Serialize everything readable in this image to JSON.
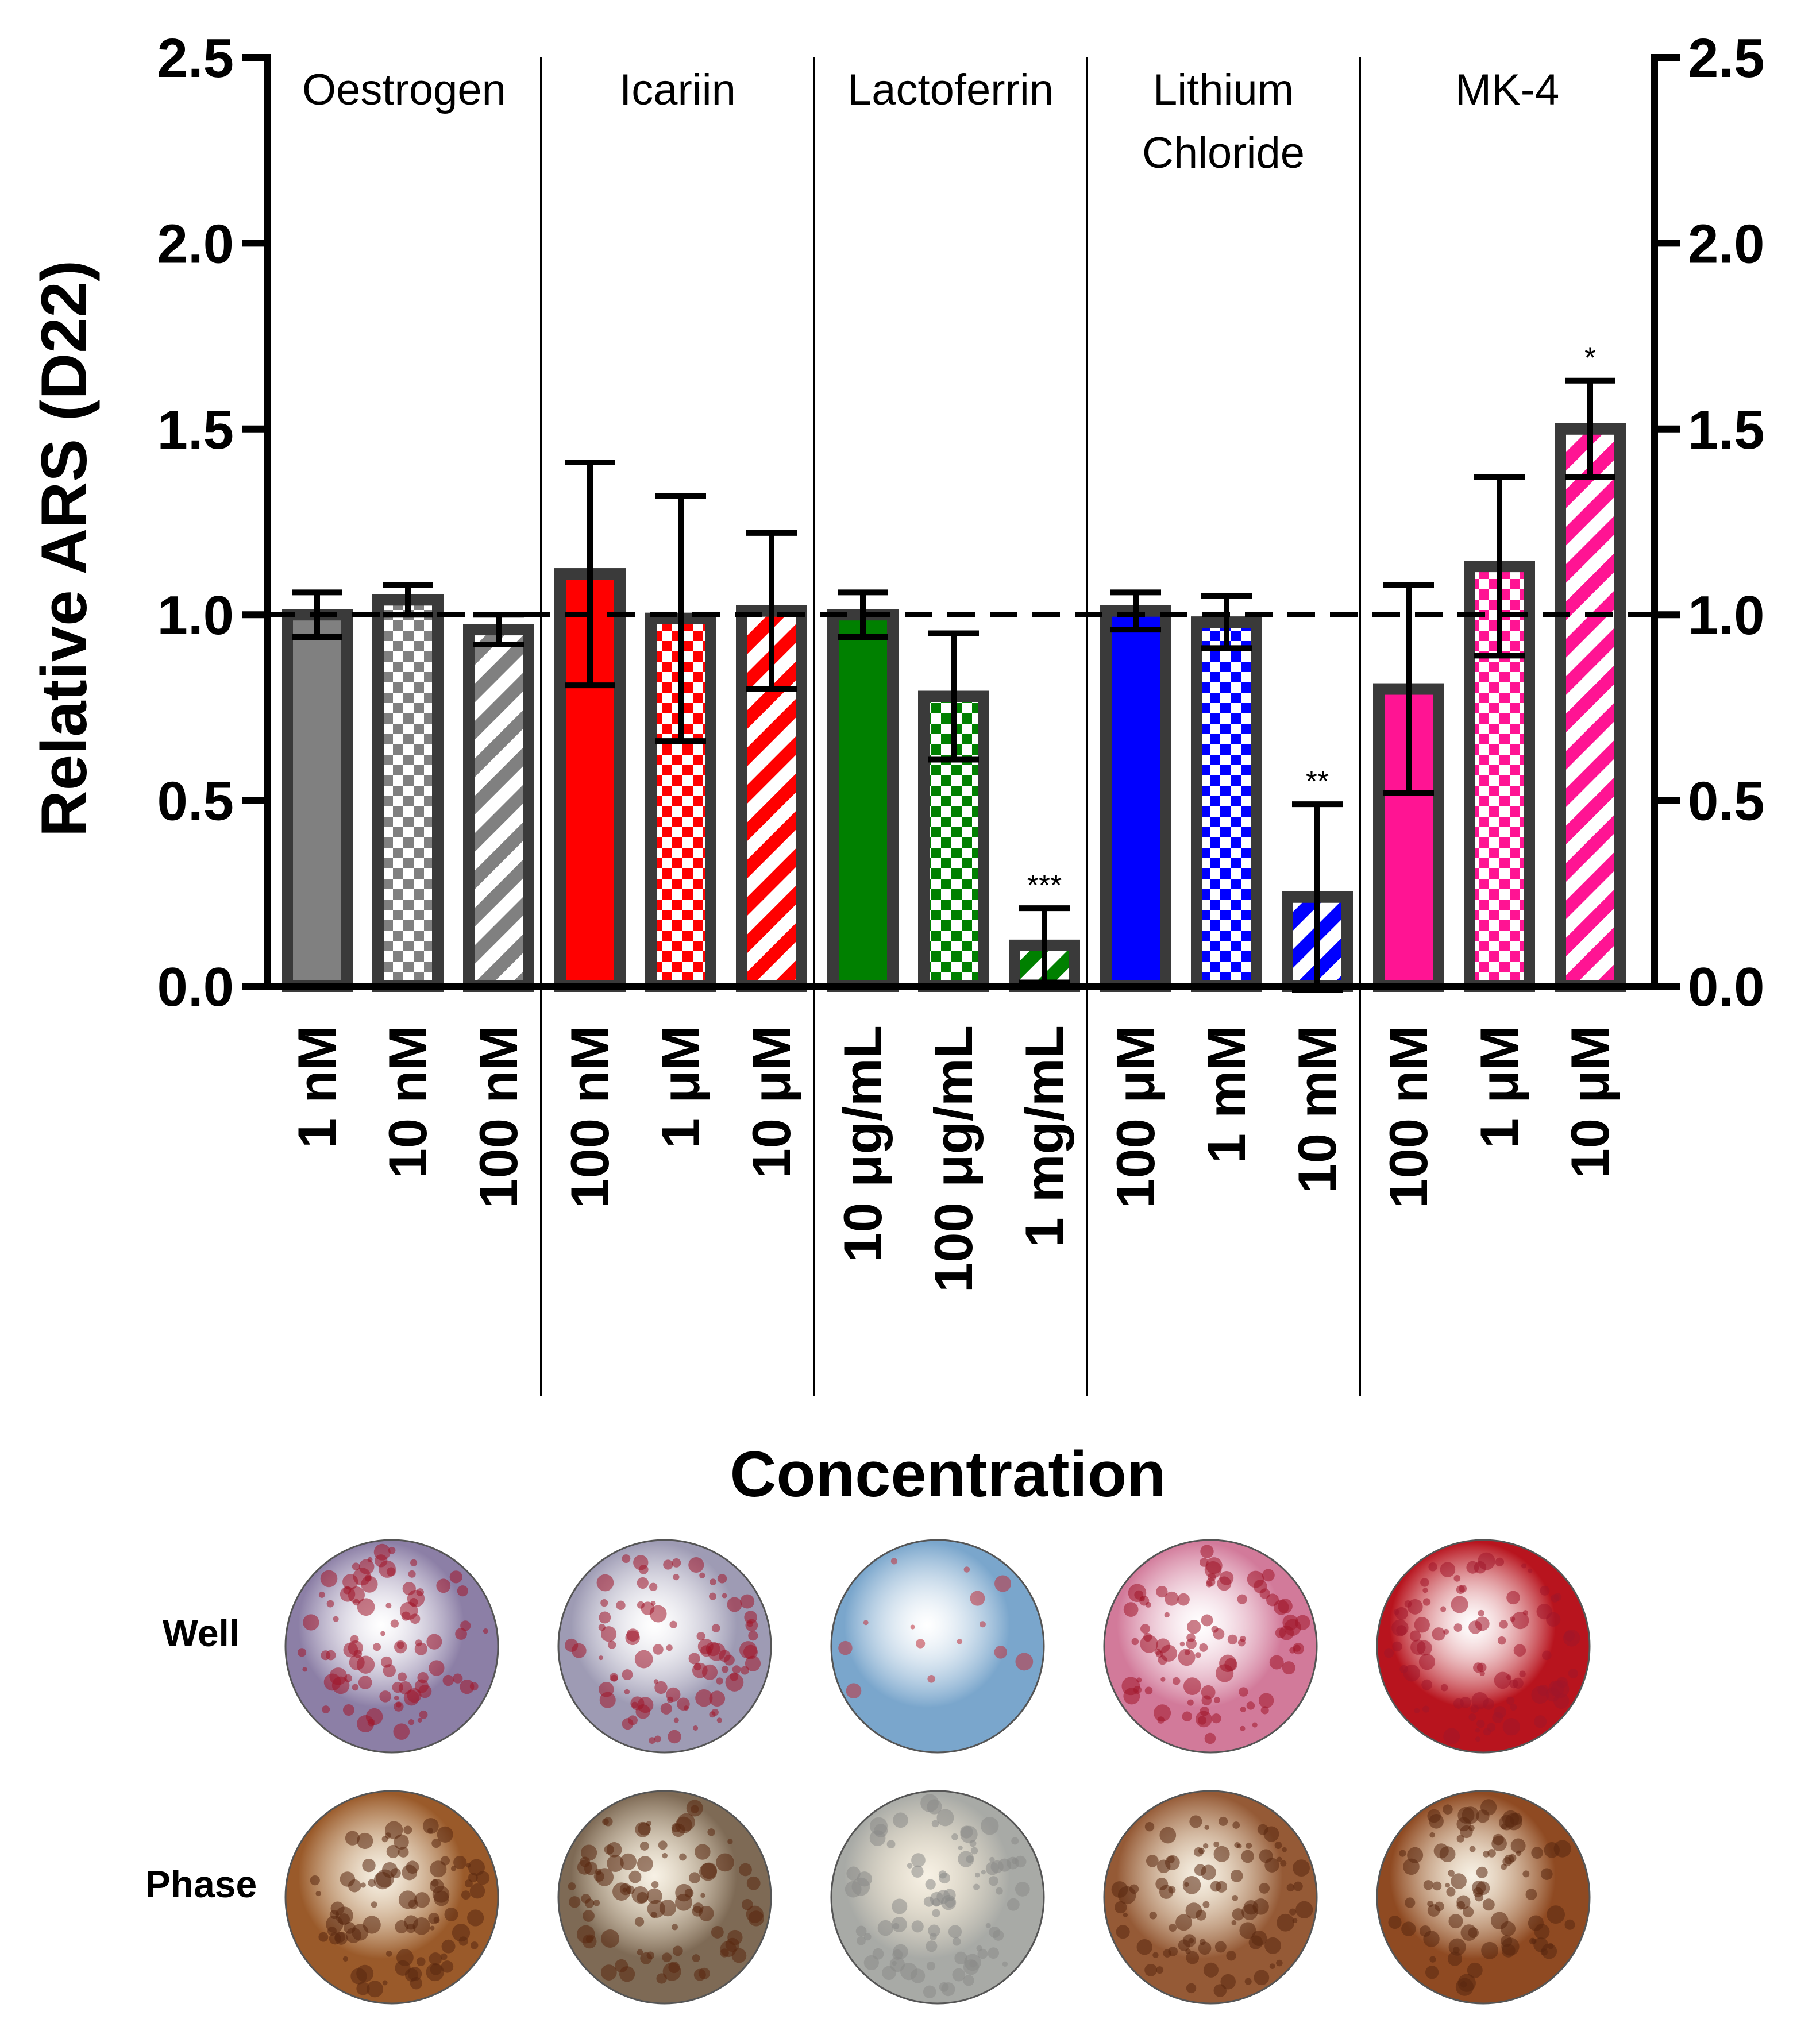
{
  "chart_data": {
    "type": "bar",
    "ylabel": "Relative ARS (D22)",
    "xlabel": "Concentration",
    "ylim": [
      0,
      2.5
    ],
    "yticks": [
      "0.0",
      "0.5",
      "1.0",
      "1.5",
      "2.0",
      "2.5"
    ],
    "reference_line": 1.0,
    "groups": [
      {
        "name": "Oestrogen",
        "color": "#808080",
        "bars": [
          {
            "label": "1 nM",
            "value": 1.0,
            "error": 0.06,
            "pattern": "solid",
            "sig": ""
          },
          {
            "label": "10 nM",
            "value": 1.04,
            "error": 0.04,
            "pattern": "checker",
            "sig": ""
          },
          {
            "label": "100 nM",
            "value": 0.96,
            "error": 0.04,
            "pattern": "stripe",
            "sig": ""
          }
        ]
      },
      {
        "name": "Icariin",
        "color": "#ff0000",
        "bars": [
          {
            "label": "100 nM",
            "value": 1.11,
            "error": 0.3,
            "pattern": "solid",
            "sig": ""
          },
          {
            "label": "1 μM",
            "value": 0.99,
            "error": 0.33,
            "pattern": "checker",
            "sig": ""
          },
          {
            "label": "10 μM",
            "value": 1.01,
            "error": 0.21,
            "pattern": "stripe",
            "sig": ""
          }
        ]
      },
      {
        "name": "Lactoferrin",
        "color": "#008000",
        "bars": [
          {
            "label": "10 μg/mL",
            "value": 1.0,
            "error": 0.06,
            "pattern": "solid",
            "sig": ""
          },
          {
            "label": "100 μg/mL",
            "value": 0.78,
            "error": 0.17,
            "pattern": "checker",
            "sig": ""
          },
          {
            "label": "1 mg/mL",
            "value": 0.11,
            "error": 0.1,
            "pattern": "stripe",
            "sig": "***"
          }
        ]
      },
      {
        "name": "Lithium Chloride",
        "color": "#0000ff",
        "bars": [
          {
            "label": "100 μM",
            "value": 1.01,
            "error": 0.05,
            "pattern": "solid",
            "sig": ""
          },
          {
            "label": "1 mM",
            "value": 0.98,
            "error": 0.07,
            "pattern": "checker",
            "sig": ""
          },
          {
            "label": "10 mM",
            "value": 0.24,
            "error": 0.25,
            "pattern": "stripe",
            "sig": "**"
          }
        ]
      },
      {
        "name": "MK-4",
        "color": "#ff1493",
        "bars": [
          {
            "label": "100 nM",
            "value": 0.8,
            "error": 0.28,
            "pattern": "solid",
            "sig": ""
          },
          {
            "label": "1 μM",
            "value": 1.13,
            "error": 0.24,
            "pattern": "checker",
            "sig": ""
          },
          {
            "label": "10 μM",
            "value": 1.5,
            "error": 0.13,
            "pattern": "stripe",
            "sig": "*"
          }
        ]
      }
    ]
  },
  "images_panel": {
    "rows": [
      "Well",
      "Phase"
    ],
    "well_colors": [
      "#8c7fa6",
      "#9e9bb4",
      "#7aa6cc",
      "#d27a9a",
      "#b8141e"
    ],
    "phase_colors": [
      "#9a5a2a",
      "#7e6a55",
      "#a8aaa6",
      "#955a36",
      "#8f4a22"
    ]
  }
}
